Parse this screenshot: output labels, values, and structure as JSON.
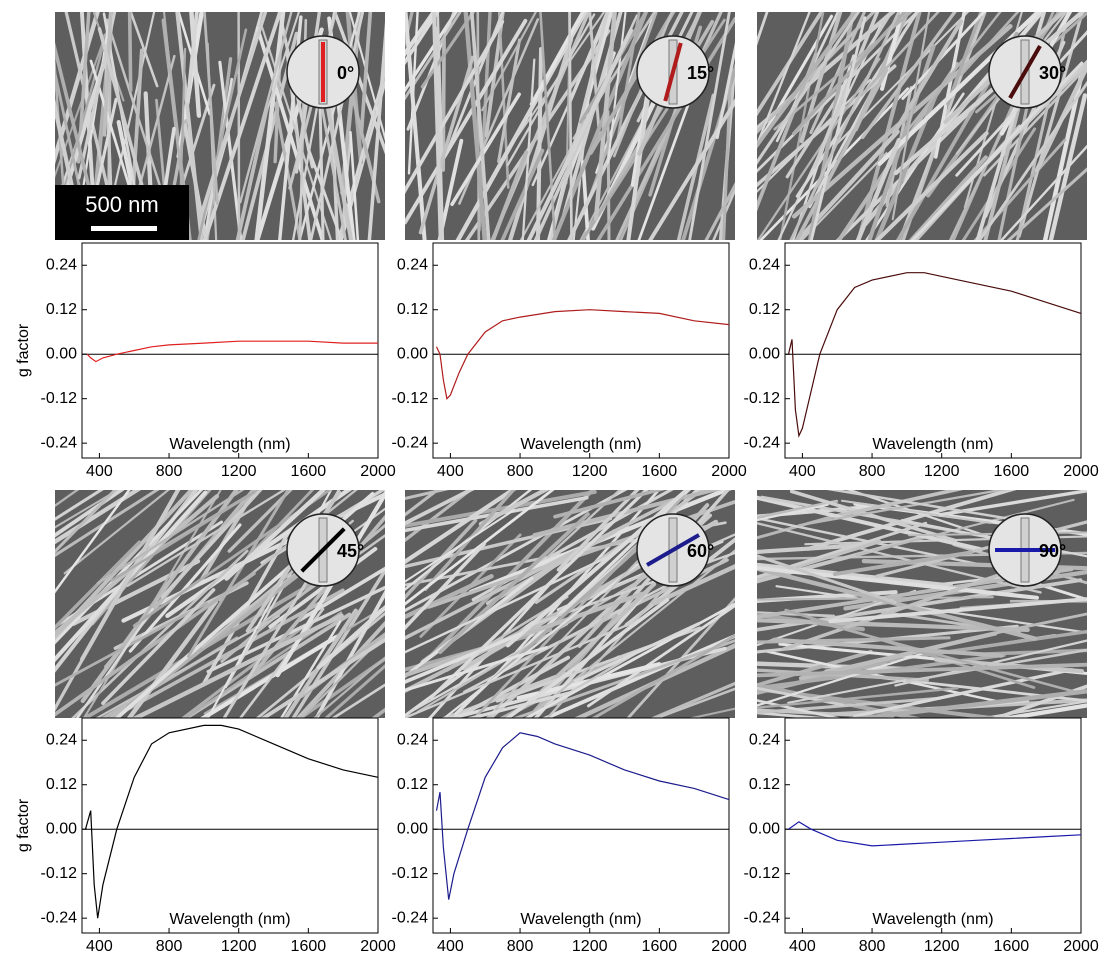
{
  "chart_data": [
    {
      "type": "line",
      "annotation": {
        "value": 0,
        "label": "0°"
      },
      "scale_bar": "500 nm",
      "ylabel": "g factor",
      "xlabel": "Wavelength (nm)",
      "color": "#e02020",
      "x": [
        330,
        350,
        380,
        420,
        500,
        600,
        700,
        800,
        1000,
        1200,
        1400,
        1600,
        1800,
        2000
      ],
      "values": [
        0.0,
        -0.01,
        -0.02,
        -0.01,
        0.0,
        0.01,
        0.02,
        0.025,
        0.03,
        0.035,
        0.035,
        0.035,
        0.03,
        0.03
      ],
      "xlim": [
        300,
        2000
      ],
      "xticks": [
        400,
        800,
        1200,
        1600,
        2000
      ],
      "ylim": [
        -0.28,
        0.3
      ],
      "yticks": [
        -0.24,
        -0.12,
        {
          "value": 0,
          "label": "0.00"
        },
        0.12,
        0.24
      ]
    },
    {
      "type": "line",
      "annotation": {
        "value": 15,
        "label": "15°"
      },
      "xlabel": "Wavelength (nm)",
      "color": "#b01c1c",
      "x": [
        320,
        340,
        360,
        380,
        400,
        450,
        500,
        600,
        700,
        800,
        1000,
        1200,
        1400,
        1600,
        1800,
        2000
      ],
      "values": [
        0.02,
        0.0,
        -0.07,
        -0.12,
        -0.11,
        -0.05,
        0.0,
        0.06,
        0.09,
        0.1,
        0.115,
        0.12,
        0.115,
        0.11,
        0.09,
        0.08
      ],
      "xlim": [
        300,
        2000
      ],
      "xticks": [
        400,
        800,
        1200,
        1600,
        2000
      ],
      "ylim": [
        -0.28,
        0.3
      ],
      "yticks": [
        -0.24,
        -0.12,
        {
          "value": 0,
          "label": "0.00"
        },
        0.12,
        0.24
      ]
    },
    {
      "type": "line",
      "annotation": {
        "value": 30,
        "label": "30°"
      },
      "xlabel": "Wavelength (nm)",
      "color": "#4a0c0c",
      "x": [
        320,
        340,
        360,
        380,
        400,
        450,
        500,
        600,
        700,
        800,
        1000,
        1100,
        1200,
        1400,
        1600,
        1800,
        2000
      ],
      "values": [
        0.0,
        0.04,
        -0.15,
        -0.22,
        -0.2,
        -0.1,
        0.0,
        0.12,
        0.18,
        0.2,
        0.22,
        0.22,
        0.21,
        0.19,
        0.17,
        0.14,
        0.11
      ],
      "xlim": [
        300,
        2000
      ],
      "xticks": [
        400,
        800,
        1200,
        1600,
        2000
      ],
      "ylim": [
        -0.28,
        0.3
      ],
      "yticks": [
        -0.24,
        -0.12,
        {
          "value": 0,
          "label": "0.00"
        },
        0.12,
        0.24
      ]
    },
    {
      "type": "line",
      "annotation": {
        "value": 45,
        "label": "45°"
      },
      "ylabel": "g factor",
      "xlabel": "Wavelength (nm)",
      "color": "#000000",
      "x": [
        320,
        350,
        370,
        390,
        420,
        500,
        600,
        700,
        800,
        1000,
        1100,
        1200,
        1400,
        1600,
        1800,
        2000
      ],
      "values": [
        0.0,
        0.05,
        -0.15,
        -0.24,
        -0.15,
        0.0,
        0.14,
        0.23,
        0.26,
        0.28,
        0.28,
        0.27,
        0.23,
        0.19,
        0.16,
        0.14
      ],
      "xlim": [
        300,
        2000
      ],
      "xticks": [
        400,
        800,
        1200,
        1600,
        2000
      ],
      "ylim": [
        -0.28,
        0.3
      ],
      "yticks": [
        -0.24,
        -0.12,
        {
          "value": 0,
          "label": "0.00"
        },
        0.12,
        0.24
      ]
    },
    {
      "type": "line",
      "annotation": {
        "value": 60,
        "label": "60°"
      },
      "xlabel": "Wavelength (nm)",
      "color": "#1c1c8c",
      "x": [
        320,
        340,
        360,
        390,
        420,
        500,
        600,
        700,
        800,
        900,
        1000,
        1200,
        1400,
        1600,
        1800,
        2000
      ],
      "values": [
        0.05,
        0.1,
        -0.05,
        -0.19,
        -0.12,
        0.0,
        0.14,
        0.22,
        0.26,
        0.25,
        0.23,
        0.2,
        0.16,
        0.13,
        0.11,
        0.08
      ],
      "xlim": [
        300,
        2000
      ],
      "xticks": [
        400,
        800,
        1200,
        1600,
        2000
      ],
      "ylim": [
        -0.28,
        0.3
      ],
      "yticks": [
        -0.24,
        -0.12,
        {
          "value": 0,
          "label": "0.00"
        },
        0.12,
        0.24
      ]
    },
    {
      "type": "line",
      "annotation": {
        "value": 90,
        "label": "90°"
      },
      "xlabel": "Wavelength (nm)",
      "color": "#1a1aaa",
      "x": [
        320,
        380,
        450,
        600,
        800,
        1000,
        1200,
        1400,
        1600,
        1800,
        2000
      ],
      "values": [
        0.0,
        0.02,
        0.0,
        -0.03,
        -0.045,
        -0.04,
        -0.035,
        -0.03,
        -0.025,
        -0.02,
        -0.015
      ],
      "xlim": [
        300,
        2000
      ],
      "xticks": [
        400,
        800,
        1200,
        1600,
        2000
      ],
      "ylim": [
        -0.28,
        0.3
      ],
      "yticks": [
        -0.24,
        -0.12,
        {
          "value": 0,
          "label": "0.00"
        },
        0.12,
        0.24
      ]
    }
  ]
}
